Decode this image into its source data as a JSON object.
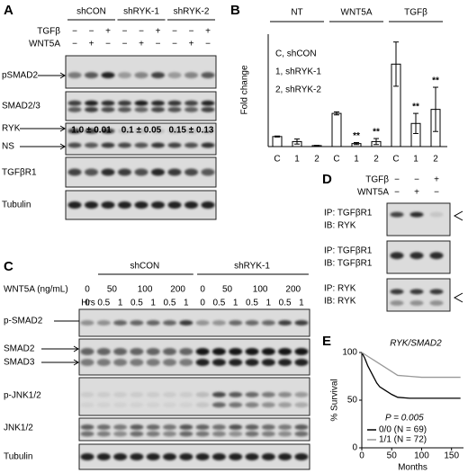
{
  "panel_a": {
    "letter": "A",
    "groups": [
      "shCON",
      "shRYK-1",
      "shRYK-2"
    ],
    "treatments": [
      {
        "name": "TGFβ",
        "signs": [
          "−",
          "−",
          "+",
          "−",
          "−",
          "+",
          "−",
          "−",
          "+"
        ]
      },
      {
        "name": "WNT5A",
        "signs": [
          "−",
          "+",
          "−",
          "−",
          "+",
          "−",
          "−",
          "+",
          "−"
        ]
      }
    ],
    "blots": [
      "pSMAD2",
      "SMAD2/3",
      "RYK",
      "TGFβR1",
      "Tubulin"
    ],
    "ns_label": "NS",
    "quantification": [
      "1.0 ± 0.01",
      "0.1 ± 0.05",
      "0.15 ± 0.13"
    ]
  },
  "panel_c": {
    "letter": "C",
    "dose_label": "WNT5A (ng/mL)",
    "hours_label": "Hrs",
    "groups": [
      {
        "name": "shCON",
        "doses": [
          "0",
          "50",
          "100",
          "200"
        ],
        "hours": [
          "0",
          "0.5",
          "1",
          "0.5",
          "1",
          "0.5",
          "1"
        ]
      },
      {
        "name": "shRYK-1",
        "doses": [
          "0",
          "50",
          "100",
          "200"
        ],
        "hours": [
          "0",
          "0.5",
          "1",
          "0.5",
          "1",
          "0.5",
          "1"
        ]
      }
    ],
    "blots": [
      "p-SMAD2",
      "SMAD2",
      "SMAD3",
      "p-JNK1/2",
      "JNK1/2",
      "Tubulin"
    ]
  },
  "panel_d": {
    "letter": "D",
    "treatments": [
      {
        "name": "TGFβ",
        "signs": [
          "−",
          "−",
          "+"
        ]
      },
      {
        "name": "WNT5A",
        "signs": [
          "−",
          "+",
          "−"
        ]
      }
    ],
    "blots": [
      {
        "ip": "IP: TGFβR1",
        "ib": "IB: RYK"
      },
      {
        "ip": "IP: TGFβR1",
        "ib": "IB: TGFβR1"
      },
      {
        "ip": "IP: RYK",
        "ib": "IB: RYK"
      }
    ]
  },
  "chart_data": [
    {
      "type": "bar",
      "letter": "B",
      "y_label": "Fold change",
      "groups": [
        "NT",
        "WNT5A",
        "TGFβ"
      ],
      "categories": [
        "C",
        "1",
        "2",
        "C",
        "1",
        "2",
        "C",
        "1",
        "2"
      ],
      "values": [
        1,
        0.5,
        0.1,
        3.3,
        0.3,
        0.5,
        8.2,
        2.3,
        3.7
      ],
      "errors": [
        0.05,
        0.25,
        0.02,
        0.15,
        0.1,
        0.3,
        2.2,
        1.0,
        2.2
      ],
      "significance": [
        null,
        null,
        null,
        null,
        "**",
        "**",
        null,
        "**",
        "**"
      ],
      "legend": [
        "C, shCON",
        "1, shRYK-1",
        "2, shRYK-2"
      ],
      "color": "#ffffff",
      "edge_color": "#000000",
      "ylim": [
        0,
        11
      ]
    },
    {
      "type": "line",
      "letter": "E",
      "title": "RYK/SMAD2",
      "x_label": "Months",
      "y_label": "% Survival",
      "annotation": "P = 0.005",
      "xlim": [
        0,
        170
      ],
      "ylim": [
        0,
        100
      ],
      "xticks": [
        0,
        50,
        100,
        150
      ],
      "yticks": [
        0,
        50,
        100
      ],
      "series": [
        {
          "name": "0/0 (N = 69)",
          "color": "#000000",
          "x": [
            0,
            5,
            10,
            15,
            20,
            25,
            30,
            40,
            50,
            60,
            80,
            100,
            120,
            140,
            165
          ],
          "values": [
            100,
            94,
            86,
            80,
            74,
            68,
            64,
            60,
            56,
            53,
            52,
            52,
            52,
            52,
            52
          ]
        },
        {
          "name": "1/1 (N = 72)",
          "color": "#999999",
          "x": [
            0,
            5,
            10,
            20,
            30,
            40,
            50,
            60,
            80,
            100,
            120,
            140,
            165
          ],
          "values": [
            100,
            98,
            96,
            92,
            88,
            84,
            80,
            76,
            75,
            74,
            74,
            74,
            74
          ]
        }
      ]
    }
  ]
}
